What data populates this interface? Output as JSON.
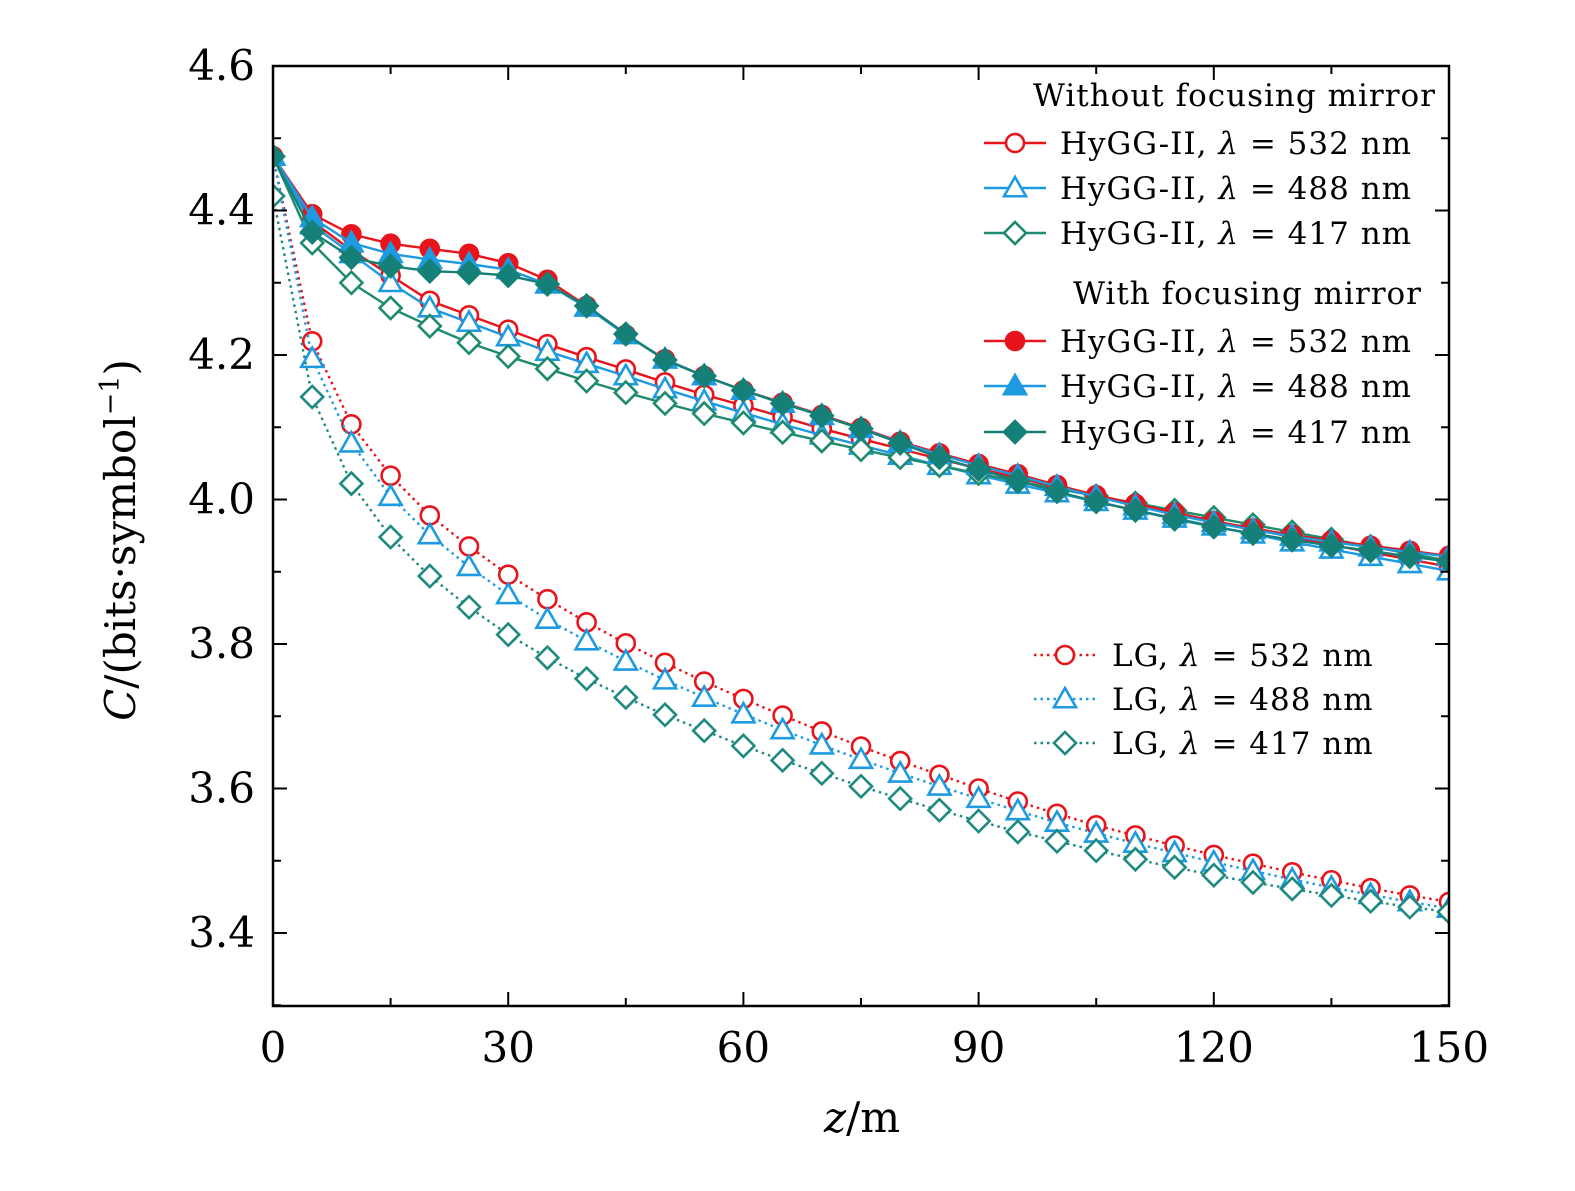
{
  "chart_data": {
    "type": "line",
    "xlabel_var": "z",
    "xlabel_unit": "/m",
    "ylabel_var": "C",
    "ylabel_unit": "/(bits·symbol",
    "ylabel_exp": "−1",
    "ylabel_close": ")",
    "xlim": [
      0,
      150
    ],
    "ylim": [
      3.31,
      4.6
    ],
    "xticks": [
      0,
      30,
      60,
      90,
      120,
      150
    ],
    "xtick_labels": [
      "0",
      "30",
      "60",
      "90",
      "120",
      "150"
    ],
    "yticks": [
      3.4,
      3.6,
      3.8,
      4.0,
      4.2,
      4.4,
      4.6
    ],
    "ytick_labels": [
      "3.4",
      "3.6",
      "3.8",
      "4.0",
      "4.2",
      "4.4",
      "4.6"
    ],
    "grid": false,
    "legend_groups": [
      {
        "title": "Without focusing mirror",
        "placement": "top-right"
      },
      {
        "title": "With focusing mirror",
        "placement": "top-right"
      },
      {
        "title": "",
        "placement": "right"
      }
    ],
    "x": [
      0,
      5,
      10,
      15,
      20,
      25,
      30,
      35,
      40,
      45,
      50,
      55,
      60,
      65,
      70,
      75,
      80,
      85,
      90,
      95,
      100,
      105,
      110,
      115,
      120,
      125,
      130,
      135,
      140,
      145,
      150
    ],
    "series": [
      {
        "name": "HyGG-II, λ = 532 nm",
        "group": 0,
        "color": "#e8141c",
        "marker": "circle-open",
        "line": "solid",
        "values": [
          4.475,
          4.385,
          4.345,
          4.31,
          4.275,
          4.255,
          4.235,
          4.215,
          4.197,
          4.18,
          4.162,
          4.145,
          4.13,
          4.114,
          4.098,
          4.084,
          4.07,
          4.056,
          4.043,
          4.03,
          4.017,
          4.005,
          3.993,
          3.981,
          3.97,
          3.959,
          3.948,
          3.937,
          3.927,
          3.917,
          3.907
        ]
      },
      {
        "name": "HyGG-II, λ = 488 nm",
        "group": 0,
        "color": "#1e9be0",
        "marker": "triangle-open",
        "line": "solid",
        "values": [
          4.475,
          4.38,
          4.34,
          4.3,
          4.265,
          4.245,
          4.225,
          4.205,
          4.188,
          4.171,
          4.153,
          4.136,
          4.12,
          4.104,
          4.089,
          4.075,
          4.061,
          4.047,
          4.034,
          4.021,
          4.009,
          3.997,
          3.985,
          3.974,
          3.963,
          3.952,
          3.941,
          3.931,
          3.921,
          3.911,
          3.901
        ]
      },
      {
        "name": "HyGG-II, λ = 417 nm",
        "group": 0,
        "color": "#1e8a6e",
        "marker": "diamond-open",
        "line": "solid",
        "values": [
          4.475,
          4.355,
          4.3,
          4.265,
          4.24,
          4.217,
          4.198,
          4.181,
          4.164,
          4.148,
          4.133,
          4.119,
          4.106,
          4.093,
          4.081,
          4.069,
          4.058,
          4.047,
          4.036,
          4.025,
          4.015,
          4.005,
          3.995,
          3.985,
          3.975,
          3.965,
          3.955,
          3.945,
          3.935,
          3.925,
          3.915
        ]
      },
      {
        "name": "HyGG-II, λ = 532 nm",
        "group": 1,
        "color": "#e8141c",
        "marker": "circle-filled",
        "line": "solid",
        "values": [
          4.475,
          4.395,
          4.367,
          4.354,
          4.347,
          4.34,
          4.327,
          4.304,
          4.268,
          4.228,
          4.194,
          4.171,
          4.151,
          4.134,
          4.117,
          4.099,
          4.08,
          4.064,
          4.049,
          4.035,
          4.02,
          4.006,
          3.994,
          3.982,
          3.97,
          3.96,
          3.951,
          3.943,
          3.936,
          3.929,
          3.922
        ]
      },
      {
        "name": "HyGG-II, λ = 488 nm",
        "group": 1,
        "color": "#1e9be0",
        "marker": "triangle-filled",
        "line": "solid",
        "values": [
          4.475,
          4.39,
          4.355,
          4.34,
          4.332,
          4.326,
          4.318,
          4.298,
          4.266,
          4.228,
          4.194,
          4.171,
          4.151,
          4.133,
          4.116,
          4.098,
          4.079,
          4.062,
          4.047,
          4.033,
          4.018,
          4.004,
          3.991,
          3.979,
          3.968,
          3.958,
          3.949,
          3.941,
          3.934,
          3.927,
          3.921
        ]
      },
      {
        "name": "HyGG-II, λ = 417 nm",
        "group": 1,
        "color": "#158077",
        "marker": "diamond-filled",
        "line": "solid",
        "values": [
          4.475,
          4.37,
          4.335,
          4.323,
          4.316,
          4.314,
          4.31,
          4.298,
          4.268,
          4.229,
          4.193,
          4.171,
          4.151,
          4.133,
          4.116,
          4.098,
          4.078,
          4.058,
          4.042,
          4.026,
          4.011,
          3.997,
          3.985,
          3.973,
          3.962,
          3.953,
          3.944,
          3.936,
          3.929,
          3.921,
          3.914
        ]
      },
      {
        "name": "LG, λ = 532 nm",
        "group": 2,
        "color": "#e8141c",
        "marker": "circle-open",
        "line": "dotted",
        "values": [
          4.475,
          4.219,
          4.104,
          4.033,
          3.978,
          3.935,
          3.896,
          3.862,
          3.83,
          3.801,
          3.774,
          3.748,
          3.724,
          3.701,
          3.679,
          3.658,
          3.638,
          3.619,
          3.6,
          3.582,
          3.565,
          3.549,
          3.535,
          3.521,
          3.508,
          3.496,
          3.484,
          3.473,
          3.462,
          3.452,
          3.443
        ]
      },
      {
        "name": "LG, λ = 488 nm",
        "group": 2,
        "color": "#1e9be0",
        "marker": "triangle-open",
        "line": "dotted",
        "values": [
          4.475,
          4.195,
          4.078,
          4.004,
          3.951,
          3.907,
          3.868,
          3.834,
          3.804,
          3.776,
          3.75,
          3.726,
          3.703,
          3.681,
          3.66,
          3.64,
          3.621,
          3.603,
          3.586,
          3.569,
          3.553,
          3.538,
          3.524,
          3.511,
          3.498,
          3.486,
          3.474,
          3.463,
          3.453,
          3.443,
          3.434
        ]
      },
      {
        "name": "LG, λ = 417 nm",
        "group": 2,
        "color": "#1e8a80",
        "marker": "diamond-open",
        "line": "dotted",
        "values": [
          4.42,
          4.142,
          4.022,
          3.948,
          3.894,
          3.851,
          3.813,
          3.781,
          3.752,
          3.726,
          3.702,
          3.68,
          3.659,
          3.639,
          3.621,
          3.603,
          3.586,
          3.57,
          3.555,
          3.54,
          3.527,
          3.514,
          3.502,
          3.491,
          3.48,
          3.47,
          3.461,
          3.452,
          3.444,
          3.436,
          3.429
        ]
      }
    ]
  }
}
